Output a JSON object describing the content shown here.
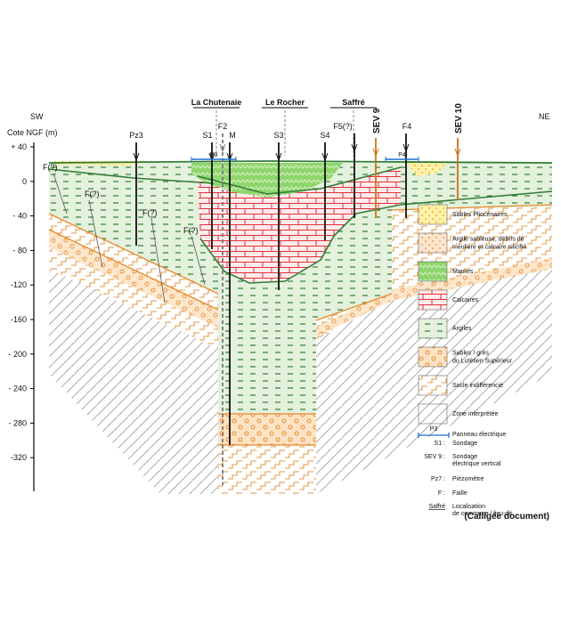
{
  "axis": {
    "title": "Cote NGF (m)",
    "ticks": [
      "+ 40",
      "0",
      "- 40",
      "- 80",
      "-120",
      "-160",
      "- 200",
      "- 240",
      "- 280",
      "-320"
    ]
  },
  "sides": {
    "left": "SW",
    "right": "NE"
  },
  "places": [
    "La Chutenaie",
    "Le Rocher",
    "Saffré"
  ],
  "wells": [
    "Pz3",
    "S1",
    "F2",
    "M",
    "S3",
    "S4",
    "F5(?)",
    "SEV 9",
    "F4",
    "SEV 10"
  ],
  "panels": [
    "P3",
    "P4"
  ],
  "faults": [
    "F(?)",
    "F(?)",
    "F(?)",
    "F(?)"
  ],
  "legend": {
    "layers": [
      {
        "lines": [
          "Sables Pliocénaires"
        ]
      },
      {
        "lines": [
          "Argile sableuse, débris de",
          "meulière et calcaire silicifié"
        ]
      },
      {
        "lines": [
          "Marnes"
        ]
      },
      {
        "lines": [
          "Calcaires"
        ]
      },
      {
        "lines": [
          "Argiles"
        ]
      },
      {
        "lines": [
          "Sables / grès",
          "du Lutétien Supérieur"
        ]
      },
      {
        "lines": [
          "Socle indifférencié"
        ]
      },
      {
        "lines": [
          "Zone interprétée"
        ]
      }
    ],
    "symbols": [
      {
        "key": "P3",
        "lines": [
          "Panneau électrique"
        ]
      },
      {
        "key": "S1 :",
        "lines": [
          "Sondage"
        ]
      },
      {
        "key": "SEV 9 :",
        "lines": [
          "Sondage",
          "électrique vertical"
        ]
      },
      {
        "key": "Pz7 :",
        "lines": [
          "Piézomètre"
        ]
      },
      {
        "key": "F :",
        "lines": [
          "Faille"
        ]
      },
      {
        "key": "Saffré",
        "lines": [
          "Localisation",
          "de commune / lieu-dit"
        ]
      }
    ]
  },
  "credit": "(Calligée document)"
}
